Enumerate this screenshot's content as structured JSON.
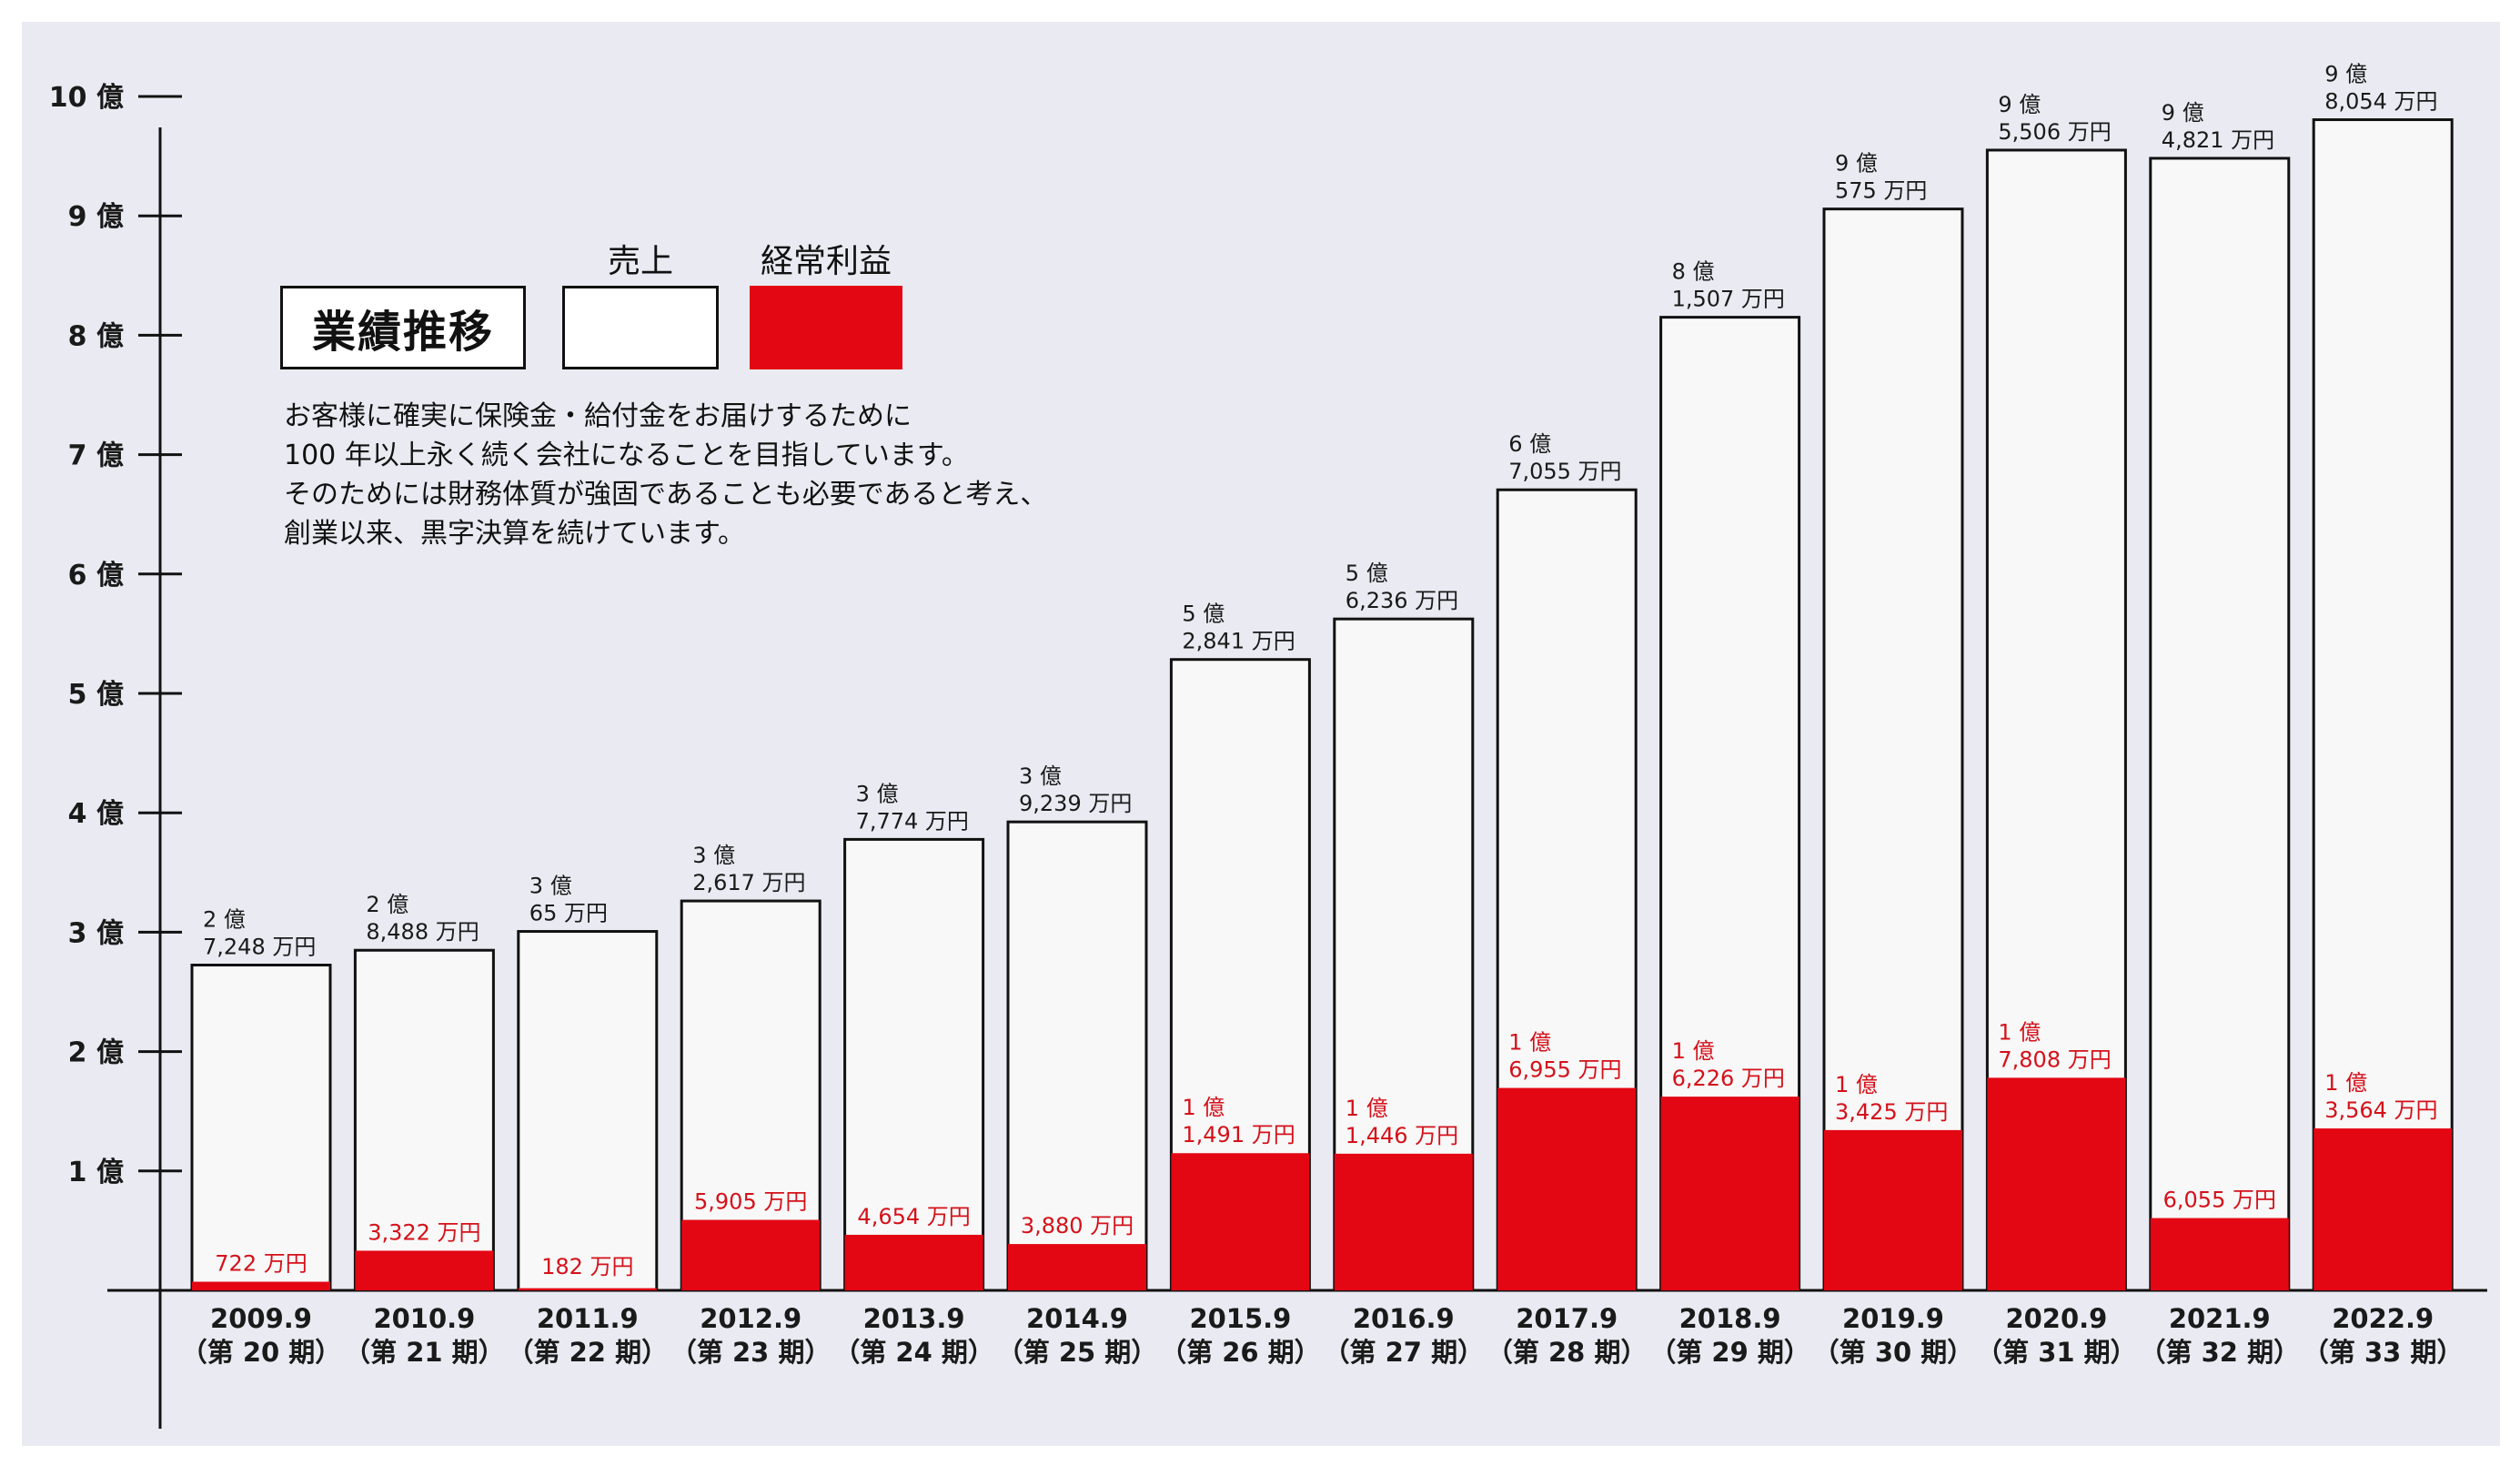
{
  "legend": {
    "title": "業績推移",
    "sales_label": "売上",
    "profit_label": "経常利益",
    "sales_color": "#ffffff",
    "profit_color": "#e30613"
  },
  "description": [
    "お客様に確実に保険金・給付金をお届けするために",
    "100 年以上永く続く会社になることを目指しています。",
    "そのためには財務体質が強固であることも必要であると考え、",
    "創業以来、黒字決算を続けています。"
  ],
  "chart_data": {
    "type": "bar",
    "title": "業績推移",
    "unit": "円",
    "y_axis": {
      "min": 0,
      "max": 1000000000,
      "ticks": [
        {
          "value": 100000000,
          "label": "1 億"
        },
        {
          "value": 200000000,
          "label": "2 億"
        },
        {
          "value": 300000000,
          "label": "3 億"
        },
        {
          "value": 400000000,
          "label": "4 億"
        },
        {
          "value": 500000000,
          "label": "5 億"
        },
        {
          "value": 600000000,
          "label": "6 億"
        },
        {
          "value": 700000000,
          "label": "7 億"
        },
        {
          "value": 800000000,
          "label": "8 億"
        },
        {
          "value": 900000000,
          "label": "9 億"
        },
        {
          "value": 1000000000,
          "label": "10 億"
        }
      ]
    },
    "categories": [
      "2009.9",
      "2010.9",
      "2011.9",
      "2012.9",
      "2013.9",
      "2014.9",
      "2015.9",
      "2016.9",
      "2017.9",
      "2018.9",
      "2019.9",
      "2020.9",
      "2021.9",
      "2022.9"
    ],
    "periods": [
      "（第 20 期）",
      "（第 21 期）",
      "（第 22 期）",
      "（第 23 期）",
      "（第 24 期）",
      "（第 25 期）",
      "（第 26 期）",
      "（第 27 期）",
      "（第 28 期）",
      "（第 29 期）",
      "（第 30 期）",
      "（第 31 期）",
      "（第 32 期）",
      "（第 33 期）"
    ],
    "series": [
      {
        "name": "売上",
        "color": "#ffffff",
        "values": [
          272480000,
          284880000,
          300650000,
          326170000,
          377740000,
          392390000,
          528410000,
          562360000,
          670550000,
          815070000,
          905750000,
          955060000,
          948210000,
          980540000
        ],
        "labels": [
          [
            "2 億",
            "7,248 万円"
          ],
          [
            "2 億",
            "8,488 万円"
          ],
          [
            "3 億",
            "65 万円"
          ],
          [
            "3 億",
            "2,617 万円"
          ],
          [
            "3 億",
            "7,774 万円"
          ],
          [
            "3 億",
            "9,239 万円"
          ],
          [
            "5 億",
            "2,841 万円"
          ],
          [
            "5 億",
            "6,236 万円"
          ],
          [
            "6 億",
            "7,055 万円"
          ],
          [
            "8 億",
            "1,507 万円"
          ],
          [
            "9 億",
            "575 万円"
          ],
          [
            "9 億",
            "5,506 万円"
          ],
          [
            "9 億",
            "4,821 万円"
          ],
          [
            "9 億",
            "8,054 万円"
          ]
        ]
      },
      {
        "name": "経常利益",
        "color": "#e30613",
        "values": [
          7220000,
          33220000,
          1820000,
          59050000,
          46540000,
          38800000,
          114910000,
          114460000,
          169550000,
          162260000,
          134250000,
          178080000,
          60550000,
          135640000
        ],
        "labels": [
          [
            "722 万円"
          ],
          [
            "3,322 万円"
          ],
          [
            "182 万円"
          ],
          [
            "5,905 万円"
          ],
          [
            "4,654 万円"
          ],
          [
            "3,880 万円"
          ],
          [
            "1 億",
            "1,491 万円"
          ],
          [
            "1 億",
            "1,446 万円"
          ],
          [
            "1 億",
            "6,955 万円"
          ],
          [
            "1 億",
            "6,226 万円"
          ],
          [
            "1 億",
            "3,425 万円"
          ],
          [
            "1 億",
            "7,808 万円"
          ],
          [
            "6,055 万円"
          ],
          [
            "1 億",
            "3,564 万円"
          ]
        ]
      }
    ]
  }
}
